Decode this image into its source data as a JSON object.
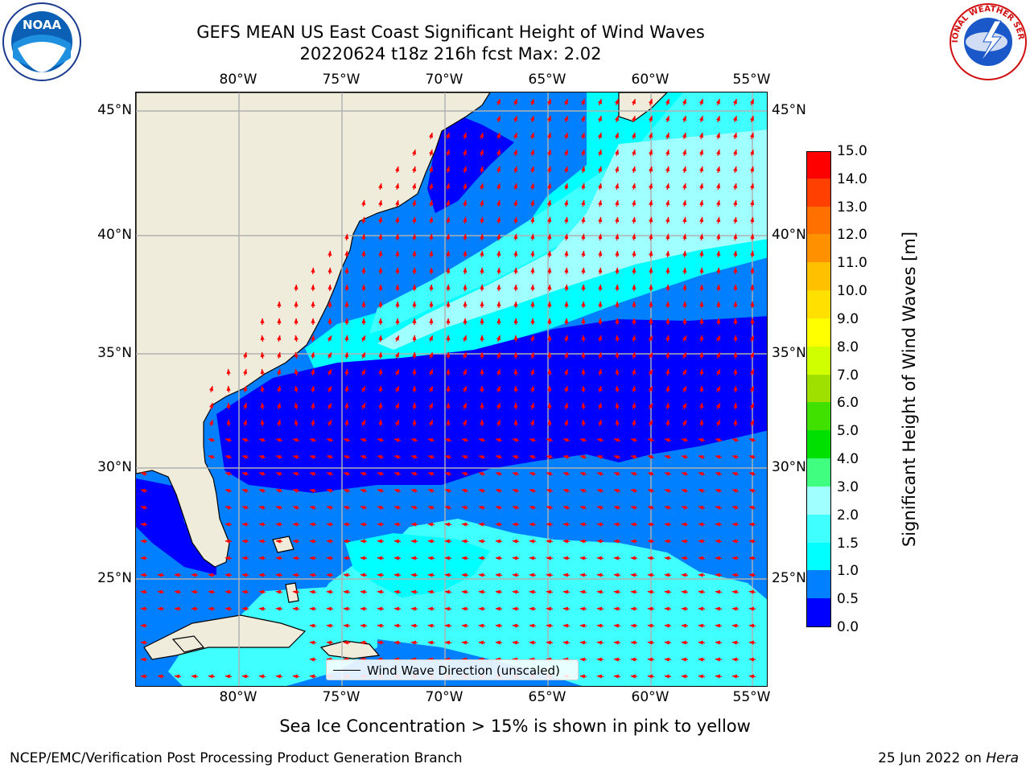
{
  "title_line1": "GEFS MEAN US East Coast Significant Height of Wind Waves",
  "title_line2": "20220624 t18z 216h fcst   Max: 2.02",
  "logos": {
    "noaa": {
      "icon": "noaa-logo-icon",
      "text": "NOAA"
    },
    "nws": {
      "icon": "nws-logo-icon",
      "text": "NATIONAL WEATHER SERVICE"
    }
  },
  "lon_ticks": [
    "80°W",
    "75°W",
    "70°W",
    "65°W",
    "60°W",
    "55°W"
  ],
  "lat_ticks": [
    "45°N",
    "40°N",
    "35°N",
    "30°N",
    "25°N"
  ],
  "map": {
    "land_color": "#efecdc",
    "grid": true,
    "arrow_color": "#ff0000",
    "legend_label": "Wind Wave Direction (unscaled)"
  },
  "colorbar": {
    "title": "Significant Height of Wind Waves [m]",
    "levels": [
      "0.0",
      "0.5",
      "1.0",
      "1.5",
      "2.0",
      "3.0",
      "4.0",
      "5.0",
      "6.0",
      "7.0",
      "8.0",
      "9.0",
      "10.0",
      "11.0",
      "12.0",
      "13.0",
      "14.0",
      "15.0"
    ],
    "colors": [
      "#0000ff",
      "#0080ff",
      "#00ffff",
      "#40ffff",
      "#a0ffff",
      "#40ff80",
      "#00e000",
      "#40e000",
      "#a0e000",
      "#d0ff00",
      "#ffff00",
      "#ffe000",
      "#ffc000",
      "#ff9000",
      "#ff7000",
      "#ff4000",
      "#ff0000"
    ]
  },
  "note": "Sea Ice Concentration > 15% is shown in pink to yellow",
  "footer_left": "NCEP/EMC/Verification Post Processing Product Generation Branch",
  "footer_date": "25 Jun 2022 on ",
  "footer_host": "Hera"
}
